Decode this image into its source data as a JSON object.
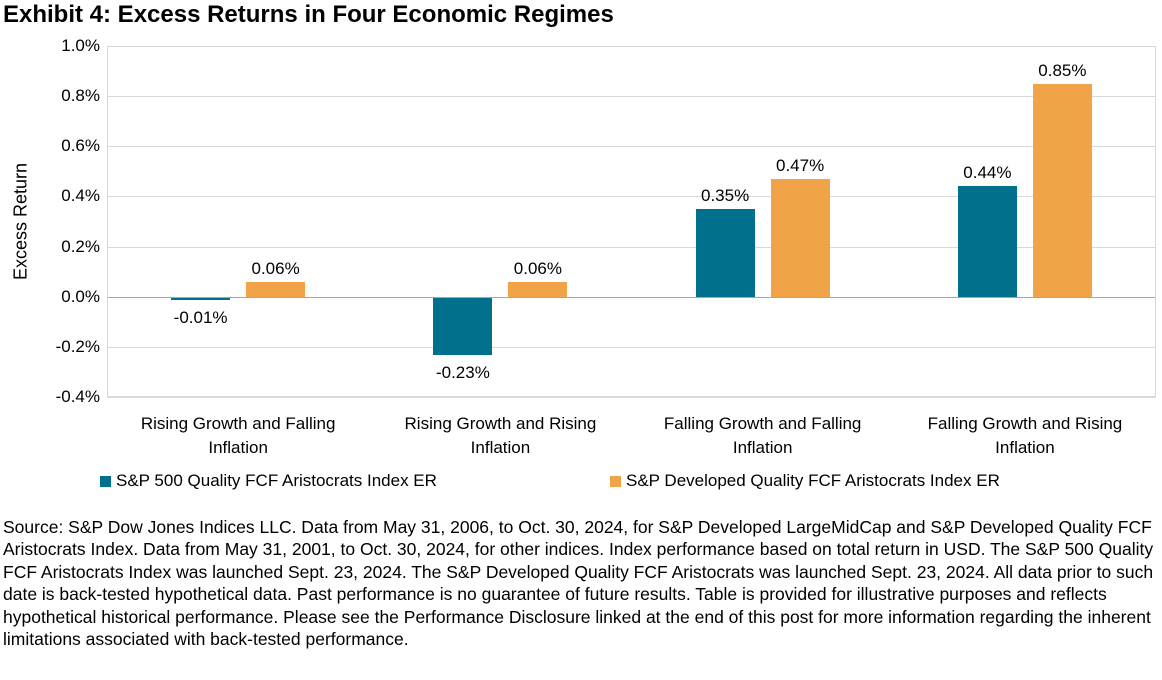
{
  "title": "Exhibit 4: Excess Returns in Four Economic Regimes",
  "chart_data": {
    "type": "bar",
    "title": "Exhibit 4: Excess Returns in Four Economic Regimes",
    "xlabel": "",
    "ylabel": "Excess Return",
    "ylim": [
      -0.4,
      1.0
    ],
    "ytick_step": 0.2,
    "yticks": [
      "1.0%",
      "0.8%",
      "0.6%",
      "0.4%",
      "0.2%",
      "0.0%",
      "-0.2%",
      "-0.4%"
    ],
    "grid": true,
    "legend_position": "bottom",
    "categories": [
      "Rising Growth and Falling Inflation",
      "Rising Growth and Rising Inflation",
      "Falling Growth and Falling Inflation",
      "Falling Growth and Rising Inflation"
    ],
    "series": [
      {
        "name": "S&P 500 Quality FCF Aristocrats Index ER",
        "color": "#00708C",
        "values": [
          -0.01,
          -0.23,
          0.35,
          0.44
        ],
        "data_labels": [
          "-0.01%",
          "-0.23%",
          "0.35%",
          "0.44%"
        ]
      },
      {
        "name": "S&P Developed Quality FCF Aristocrats Index ER",
        "color": "#F0A347",
        "values": [
          0.06,
          0.06,
          0.47,
          0.85
        ],
        "data_labels": [
          "0.06%",
          "0.06%",
          "0.47%",
          "0.85%"
        ]
      }
    ],
    "gridline_color": "#d9d9d9",
    "zero_line_color": "#a6a6a6"
  },
  "source_note": "Source: S&P Dow Jones Indices LLC. Data from May 31, 2006, to Oct. 30, 2024, for S&P Developed LargeMidCap and S&P Developed Quality FCF Aristocrats Index. Data from May 31, 2001, to Oct. 30, 2024, for other indices. Index performance based on total return in USD. The S&P 500 Quality FCF Aristocrats Index was launched Sept. 23, 2024. The S&P Developed Quality FCF Aristocrats was launched Sept. 23, 2024. All data prior to such date is back-tested hypothetical data. Past performance is no guarantee of future results. Table is provided for illustrative purposes and reflects hypothetical historical performance. Please see the Performance Disclosure linked at the end of this post for more information regarding the inherent limitations associated with back-tested performance."
}
